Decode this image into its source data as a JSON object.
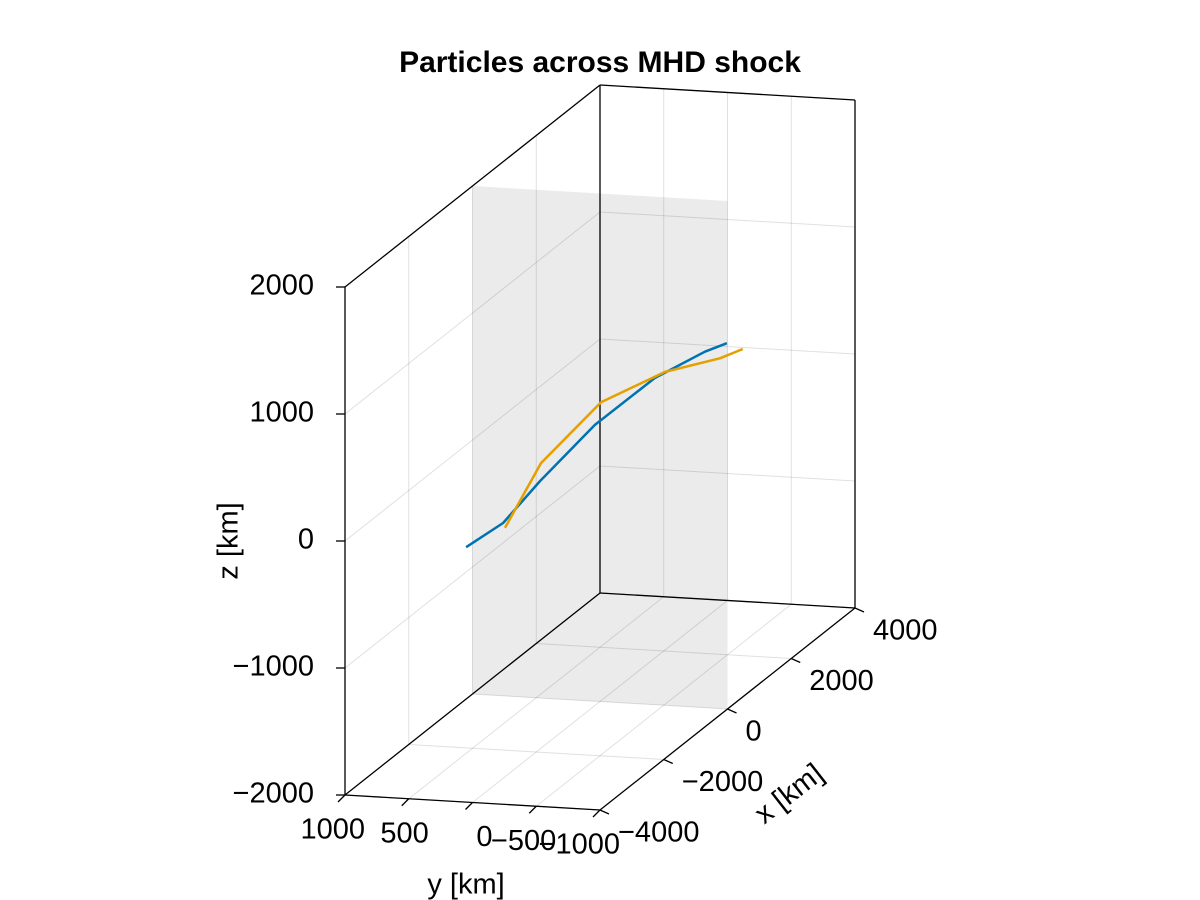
{
  "chart_data": {
    "type": "line3d",
    "title": "Particles across MHD shock",
    "xlabel": "x [km]",
    "ylabel": "y [km]",
    "zlabel": "z [km]",
    "xlim": [
      -4000,
      4000
    ],
    "ylim": [
      -1000,
      1000
    ],
    "zlim": [
      -2000,
      2000
    ],
    "xticks": [
      {
        "value": -4000,
        "label": "−4000"
      },
      {
        "value": -2000,
        "label": "−2000"
      },
      0,
      2000,
      4000
    ],
    "yticks": [
      {
        "value": -1000,
        "label": "−1000"
      },
      {
        "value": -500,
        "label": "−500"
      },
      0,
      500,
      1000
    ],
    "zticks": [
      {
        "value": -2000,
        "label": "−2000"
      },
      {
        "value": -1000,
        "label": "−1000"
      },
      0,
      1000,
      2000
    ],
    "grid": true,
    "shock_x": 0,
    "shock_color": "#e3e3e3",
    "series": [
      {
        "color": "#0072b2",
        "x": [
          -4200,
          -3040,
          -1880,
          -160,
          1720,
          3290,
          3980
        ],
        "y": [
          0,
          0,
          0,
          0,
          0,
          0,
          0
        ],
        "z": [
          50,
          10,
          110,
          210,
          205,
          100,
          30
        ]
      },
      {
        "color": "#e69f00",
        "x": [
          -2980,
          -1850,
          30,
          2040,
          3760,
          4480
        ],
        "y": [
          0,
          0,
          0,
          0,
          0,
          0
        ],
        "z": [
          -40,
          245,
          350,
          190,
          -45,
          -115
        ]
      }
    ]
  }
}
